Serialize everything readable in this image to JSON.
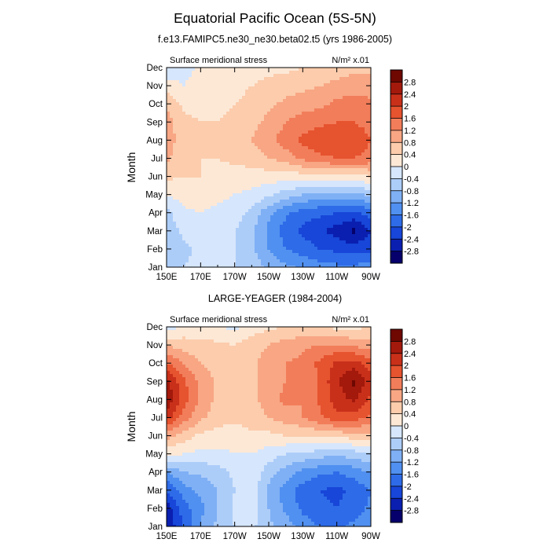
{
  "title": "Equatorial Pacific Ocean (5S-5N)",
  "chart_data": [
    {
      "type": "heatmap",
      "title": "f.e13.FAMIPC5.ne30_ne30.beta02.t5 (yrs 1986-2005)",
      "left_label": "Surface meridional stress",
      "units_label": "N/m² x.01",
      "xlabel": "",
      "ylabel": "Month",
      "x_tick_labels": [
        "150E",
        "170E",
        "170W",
        "150W",
        "130W",
        "110W",
        "90W"
      ],
      "x_ticks": [
        150,
        170,
        190,
        210,
        230,
        250,
        270
      ],
      "xlim": [
        150,
        270
      ],
      "y_tick_labels": [
        "Jan",
        "Feb",
        "Mar",
        "Apr",
        "May",
        "Jun",
        "Jul",
        "Aug",
        "Sep",
        "Oct",
        "Nov",
        "Dec"
      ],
      "ylim": [
        0,
        11
      ],
      "x": [
        150,
        160,
        170,
        180,
        190,
        200,
        210,
        220,
        230,
        240,
        250,
        260,
        270
      ],
      "values": [
        [
          -0.6,
          -0.4,
          -0.3,
          -0.3,
          -0.4,
          -0.6,
          -0.9,
          -1.1,
          -1.3,
          -1.4,
          -1.5,
          -1.5,
          -1.4
        ],
        [
          -0.8,
          -0.5,
          -0.3,
          -0.3,
          -0.4,
          -0.7,
          -1.2,
          -1.6,
          -1.8,
          -2.0,
          -2.1,
          -2.2,
          -2.1
        ],
        [
          -0.7,
          -0.3,
          -0.2,
          -0.2,
          -0.4,
          -0.7,
          -1.3,
          -1.8,
          -2.1,
          -2.3,
          -2.6,
          -2.9,
          -2.4
        ],
        [
          -0.5,
          -0.1,
          0.0,
          -0.1,
          -0.2,
          -0.5,
          -1.1,
          -1.5,
          -1.8,
          -1.9,
          -2.0,
          -2.1,
          -1.8
        ],
        [
          0.0,
          0.2,
          0.2,
          0.1,
          0.0,
          -0.1,
          -0.3,
          -0.6,
          -0.8,
          -0.9,
          -0.9,
          -0.9,
          -0.7
        ],
        [
          0.5,
          0.4,
          0.4,
          0.3,
          0.2,
          0.2,
          0.2,
          0.2,
          0.2,
          0.3,
          0.3,
          0.3,
          0.4
        ],
        [
          0.9,
          0.5,
          0.4,
          0.4,
          0.5,
          0.6,
          0.8,
          1.0,
          1.3,
          1.5,
          1.6,
          1.6,
          1.5
        ],
        [
          1.0,
          0.6,
          0.5,
          0.5,
          0.6,
          0.8,
          1.1,
          1.4,
          1.7,
          1.9,
          1.9,
          1.8,
          1.6
        ],
        [
          1.0,
          0.5,
          0.4,
          0.4,
          0.5,
          0.7,
          0.9,
          1.2,
          1.4,
          1.5,
          1.6,
          1.6,
          1.5
        ],
        [
          0.7,
          0.3,
          0.3,
          0.3,
          0.4,
          0.5,
          0.7,
          0.9,
          1.0,
          1.1,
          1.3,
          1.4,
          1.3
        ],
        [
          0.2,
          0.0,
          0.2,
          0.3,
          0.3,
          0.4,
          0.5,
          0.6,
          0.7,
          0.8,
          0.9,
          1.0,
          1.0
        ],
        [
          -0.3,
          -0.2,
          0.1,
          0.2,
          0.2,
          0.2,
          0.3,
          0.3,
          0.4,
          0.5,
          0.6,
          0.7,
          0.7
        ]
      ]
    },
    {
      "type": "heatmap",
      "title": "LARGE-YEAGER (1984-2004)",
      "left_label": "Surface meridional stress",
      "units_label": "N/m² x.01",
      "xlabel": "",
      "ylabel": "Month",
      "x_tick_labels": [
        "150E",
        "170E",
        "170W",
        "150W",
        "130W",
        "110W",
        "90W"
      ],
      "x_ticks": [
        150,
        170,
        190,
        210,
        230,
        250,
        270
      ],
      "xlim": [
        150,
        270
      ],
      "y_tick_labels": [
        "Jan",
        "Feb",
        "Mar",
        "Apr",
        "May",
        "Jun",
        "Jul",
        "Aug",
        "Sep",
        "Oct",
        "Nov",
        "Dec"
      ],
      "ylim": [
        0,
        11
      ],
      "x": [
        150,
        160,
        170,
        180,
        190,
        200,
        210,
        220,
        230,
        240,
        250,
        260,
        270
      ],
      "values": [
        [
          -2.8,
          -2.0,
          -1.2,
          -0.7,
          -0.4,
          -0.3,
          -0.7,
          -1.0,
          -1.4,
          -1.6,
          -1.7,
          -1.5,
          -1.3
        ],
        [
          -2.6,
          -1.8,
          -1.3,
          -0.8,
          -0.3,
          -0.2,
          -0.8,
          -1.3,
          -1.7,
          -1.9,
          -2.0,
          -1.8,
          -1.5
        ],
        [
          -2.0,
          -1.4,
          -1.1,
          -0.8,
          -0.4,
          -0.2,
          -0.9,
          -1.4,
          -1.8,
          -2.0,
          -2.1,
          -1.9,
          -1.6
        ],
        [
          -1.2,
          -0.8,
          -0.7,
          -0.6,
          -0.3,
          -0.1,
          -0.6,
          -1.0,
          -1.3,
          -1.5,
          -1.6,
          -1.4,
          -1.2
        ],
        [
          0.1,
          0.0,
          -0.1,
          -0.1,
          0.0,
          0.0,
          -0.2,
          -0.4,
          -0.5,
          -0.6,
          -0.7,
          -0.6,
          -0.4
        ],
        [
          1.0,
          0.6,
          0.3,
          0.2,
          0.2,
          0.3,
          0.3,
          0.4,
          0.4,
          0.5,
          0.5,
          0.6,
          0.7
        ],
        [
          2.2,
          1.4,
          0.9,
          0.6,
          0.5,
          0.6,
          0.8,
          1.0,
          1.2,
          1.5,
          1.9,
          1.8,
          1.5
        ],
        [
          2.8,
          1.8,
          1.1,
          0.7,
          0.5,
          0.7,
          1.0,
          1.3,
          1.2,
          1.7,
          2.2,
          2.5,
          1.9
        ],
        [
          2.5,
          1.7,
          1.1,
          0.7,
          0.6,
          0.7,
          1.0,
          1.2,
          1.2,
          1.7,
          2.3,
          2.9,
          2.1
        ],
        [
          1.6,
          1.2,
          0.8,
          0.6,
          0.5,
          0.7,
          1.0,
          1.2,
          1.3,
          1.7,
          2.1,
          2.2,
          1.8
        ],
        [
          0.8,
          0.6,
          0.5,
          0.5,
          0.4,
          0.6,
          0.8,
          1.0,
          1.1,
          1.2,
          1.2,
          1.1,
          1.0
        ],
        [
          -0.3,
          0.1,
          0.2,
          0.0,
          -0.1,
          0.2,
          0.3,
          0.4,
          0.4,
          0.4,
          0.3,
          0.3,
          0.4
        ]
      ]
    }
  ],
  "colorbar": {
    "labels": [
      "2.8",
      "2.4",
      "2",
      "1.6",
      "1.2",
      "0.8",
      "0.4",
      "0",
      "-0.4",
      "-0.8",
      "-1.2",
      "-1.6",
      "-2",
      "-2.4",
      "-2.8"
    ],
    "levels": [
      -2.8,
      -2.4,
      -2.0,
      -1.6,
      -1.2,
      -0.8,
      -0.4,
      0,
      0.4,
      0.8,
      1.2,
      1.6,
      2.0,
      2.4,
      2.8
    ],
    "colors": [
      "#05006b",
      "#0a1fb0",
      "#1746d8",
      "#2e6be8",
      "#5090f0",
      "#7fb0f5",
      "#adcdf9",
      "#d6e6fc",
      "#fde8d6",
      "#fcccac",
      "#f8a684",
      "#f27d5a",
      "#e6532f",
      "#c9301a",
      "#a3190c",
      "#6e0801"
    ]
  }
}
